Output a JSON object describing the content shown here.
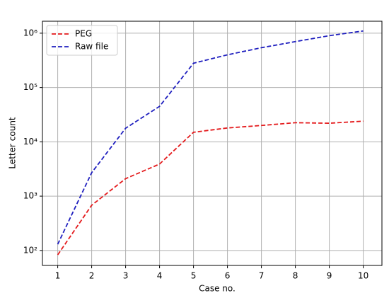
{
  "chart_data": {
    "type": "line",
    "xlabel": "Case no.",
    "ylabel": "Letter count",
    "x": [
      1,
      2,
      3,
      4,
      5,
      6,
      7,
      8,
      9,
      10
    ],
    "series": [
      {
        "name": "PEG",
        "color": "#e41a1c",
        "values": [
          83,
          680,
          2100,
          3900,
          15000,
          18000,
          20000,
          22500,
          22000,
          24000
        ]
      },
      {
        "name": "Raw file",
        "color": "#1f1fbf",
        "values": [
          130,
          2700,
          17800,
          45000,
          280000,
          400000,
          540000,
          700000,
          900000,
          1100000
        ]
      }
    ],
    "xlim": [
      0.55,
      10.55
    ],
    "xticks": [
      1,
      2,
      3,
      4,
      5,
      6,
      7,
      8,
      9,
      10
    ],
    "ylim": [
      53,
      1660000
    ],
    "yscale": "log",
    "yticks": [
      {
        "value": 100,
        "label": "10²"
      },
      {
        "value": 1000,
        "label": "10³"
      },
      {
        "value": 10000,
        "label": "10⁴"
      },
      {
        "value": 100000,
        "label": "10⁵"
      },
      {
        "value": 1000000,
        "label": "10⁶"
      }
    ],
    "grid": true,
    "legend": "upper left"
  }
}
